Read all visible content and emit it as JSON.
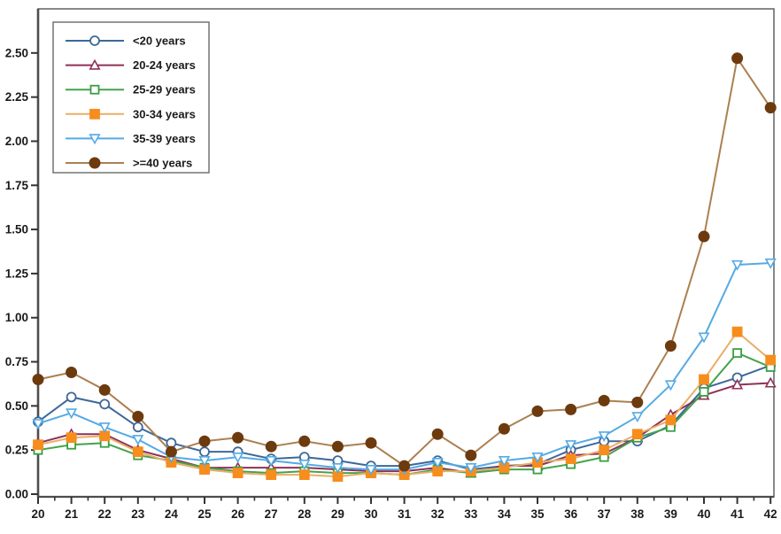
{
  "chart_data": {
    "type": "line",
    "title": "",
    "xlabel": "",
    "ylabel": "",
    "x": [
      20,
      21,
      22,
      23,
      24,
      25,
      26,
      27,
      28,
      29,
      30,
      31,
      32,
      33,
      34,
      35,
      36,
      37,
      38,
      39,
      40,
      41,
      42
    ],
    "x_tick_labels": [
      "20",
      "21",
      "22",
      "23",
      "24",
      "25",
      "26",
      "27",
      "28",
      "29",
      "30",
      "31",
      "32",
      "33",
      "34",
      "35",
      "36",
      "37",
      "38",
      "39",
      "40",
      "41",
      "42"
    ],
    "y_tick_labels": [
      "0.00",
      "0.25",
      "0.50",
      "0.75",
      "1.00",
      "1.25",
      "1.50",
      "1.75",
      "2.00",
      "2.25",
      "2.50"
    ],
    "yticks": [
      0,
      0.25,
      0.5,
      0.75,
      1,
      1.25,
      1.5,
      1.75,
      2,
      2.25,
      2.5
    ],
    "xlim": [
      20,
      42
    ],
    "ylim": [
      0,
      2.75
    ],
    "grid": false,
    "frame": true,
    "legend_position": "top-left",
    "background": "#ffffff",
    "series": [
      {
        "name": "<20 years",
        "line_color": "#3d6899",
        "marker_color": "#3d6899",
        "marker": "circle-open",
        "values": [
          0.41,
          0.55,
          0.51,
          0.38,
          0.29,
          0.24,
          0.24,
          0.2,
          0.21,
          0.19,
          0.16,
          0.16,
          0.19,
          0.14,
          0.16,
          0.17,
          0.25,
          0.3,
          0.3,
          0.39,
          0.6,
          0.66,
          0.73
        ]
      },
      {
        "name": "20-24 years",
        "line_color": "#8f3058",
        "marker_color": "#8f3058",
        "marker": "triangle-up-open",
        "values": [
          0.29,
          0.34,
          0.34,
          0.25,
          0.2,
          0.15,
          0.15,
          0.15,
          0.15,
          0.14,
          0.13,
          0.13,
          0.15,
          0.12,
          0.16,
          0.16,
          0.22,
          0.23,
          0.32,
          0.45,
          0.56,
          0.62,
          0.63
        ]
      },
      {
        "name": "25-29 years",
        "line_color": "#44a34c",
        "marker_color": "#3a9e43",
        "marker": "square-open",
        "values": [
          0.25,
          0.28,
          0.29,
          0.22,
          0.19,
          0.15,
          0.13,
          0.12,
          0.13,
          0.12,
          0.12,
          0.11,
          0.14,
          0.12,
          0.14,
          0.14,
          0.17,
          0.21,
          0.32,
          0.38,
          0.58,
          0.8,
          0.72
        ]
      },
      {
        "name": "30-34 years",
        "line_color": "#e9ae67",
        "marker_color": "#f68d1d",
        "marker": "square-filled",
        "values": [
          0.28,
          0.32,
          0.33,
          0.24,
          0.18,
          0.14,
          0.12,
          0.11,
          0.11,
          0.1,
          0.12,
          0.11,
          0.13,
          0.13,
          0.15,
          0.18,
          0.2,
          0.25,
          0.34,
          0.42,
          0.65,
          0.92,
          0.76
        ]
      },
      {
        "name": "35-39 years",
        "line_color": "#55aae4",
        "marker_color": "#55aae4",
        "marker": "triangle-down-open",
        "values": [
          0.4,
          0.46,
          0.38,
          0.31,
          0.21,
          0.19,
          0.21,
          0.19,
          0.17,
          0.15,
          0.14,
          0.14,
          0.18,
          0.15,
          0.19,
          0.21,
          0.28,
          0.33,
          0.44,
          0.62,
          0.89,
          1.3,
          1.31
        ]
      },
      {
        "name": ">=40 years",
        "line_color": "#ab8051",
        "marker_color": "#6d3a0e",
        "marker": "circle-filled",
        "values": [
          0.65,
          0.69,
          0.59,
          0.44,
          0.24,
          0.3,
          0.32,
          0.27,
          0.3,
          0.27,
          0.29,
          0.16,
          0.34,
          0.22,
          0.37,
          0.47,
          0.48,
          0.53,
          0.52,
          0.84,
          1.46,
          2.47,
          2.19
        ]
      }
    ]
  }
}
